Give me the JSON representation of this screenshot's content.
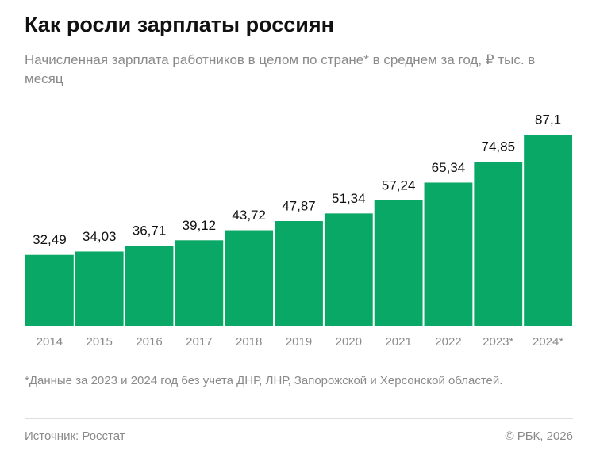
{
  "chart_data": {
    "type": "bar",
    "title": "Как росли зарплаты россиян",
    "subtitle": "Начисленная зарплата работников в целом по стране* в среднем за год, ₽ тыс. в месяц",
    "categories": [
      "2014",
      "2015",
      "2016",
      "2017",
      "2018",
      "2019",
      "2020",
      "2021",
      "2022",
      "2023*",
      "2024*"
    ],
    "values": [
      32.49,
      34.03,
      36.71,
      39.12,
      43.72,
      47.87,
      51.34,
      57.24,
      65.34,
      74.85,
      87.1
    ],
    "value_labels": [
      "32,49",
      "34,03",
      "36,71",
      "39,12",
      "43,72",
      "47,87",
      "51,34",
      "57,24",
      "65,34",
      "74,85",
      "87,1"
    ],
    "color": "#0aa866",
    "footnote": "*Данные за 2023 и 2024 год без учета ДНР, ЛНР, Запорожской и Херсонской областей.",
    "source": "Источник: Росстат",
    "copyright": "© РБК, 2026"
  }
}
